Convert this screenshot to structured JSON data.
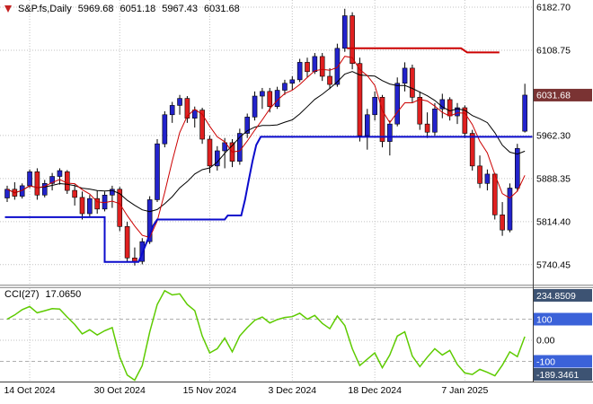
{
  "header": {
    "symbol": "S&P.fs,Daily",
    "open": "5969.68",
    "high": "6051.18",
    "low": "5967.43",
    "close": "6031.68"
  },
  "indicator": {
    "label": "CCI(27)",
    "value": "17.0650"
  },
  "colors": {
    "background": "#ffffff",
    "bull": "#2323cc",
    "bear": "#e02020",
    "wick": "#000000",
    "ma_fast": "#cc0000",
    "ma_slow": "#000000",
    "support_line": "#0b0bcc",
    "resistance_line": "#cc0000",
    "cci_line": "#5ecb00",
    "grid": "#c2c2c2",
    "level_line": "#b0b0b0",
    "axis_text": "#000000",
    "frame": "#404040",
    "splitter_fill": "#e8e8e8",
    "splitter_edge": "#9a9a9a",
    "price_tag_bg": "#7a3333",
    "level_tag_bg": "#3b62d9",
    "range_tag_bg": "#3d5373",
    "tag_text": "#ffffff"
  },
  "chart_data": {
    "type": "candlestick",
    "symbol": "S&P.fs",
    "timeframe": "Daily",
    "x_ticks": [
      {
        "label": "14 Oct 2024",
        "index": 3
      },
      {
        "label": "30 Oct 2024",
        "index": 15
      },
      {
        "label": "15 Nov 2024",
        "index": 27
      },
      {
        "label": "3 Dec 2024",
        "index": 38
      },
      {
        "label": "18 Dec 2024",
        "index": 49
      },
      {
        "label": "7 Jan 2025",
        "index": 61
      }
    ],
    "price_axis": {
      "gridlines": [
        {
          "label": "6182.70",
          "value": 6182.7
        },
        {
          "label": "6108.75",
          "value": 6108.75
        },
        {
          "label": "5962.30",
          "value": 5962.3
        },
        {
          "label": "5888.35",
          "value": 5888.35
        },
        {
          "label": "5814.40",
          "value": 5814.4
        },
        {
          "label": "5740.45",
          "value": 5740.45
        }
      ],
      "current": {
        "label": "6031.68",
        "value": 6031.68
      }
    },
    "candles": [
      [
        5855,
        5876,
        5848,
        5870
      ],
      [
        5870,
        5882,
        5852,
        5858
      ],
      [
        5858,
        5880,
        5854,
        5876
      ],
      [
        5876,
        5904,
        5872,
        5900
      ],
      [
        5900,
        5906,
        5852,
        5860
      ],
      [
        5860,
        5886,
        5856,
        5880
      ],
      [
        5880,
        5898,
        5868,
        5892
      ],
      [
        5892,
        5906,
        5878,
        5902
      ],
      [
        5900,
        5903,
        5862,
        5868
      ],
      [
        5868,
        5878,
        5842,
        5856
      ],
      [
        5856,
        5866,
        5818,
        5828
      ],
      [
        5828,
        5860,
        5822,
        5854
      ],
      [
        5854,
        5868,
        5828,
        5836
      ],
      [
        5836,
        5866,
        5832,
        5860
      ],
      [
        5860,
        5876,
        5838,
        5870
      ],
      [
        5870,
        5874,
        5798,
        5806
      ],
      [
        5806,
        5814,
        5744,
        5752
      ],
      [
        5752,
        5770,
        5739,
        5746
      ],
      [
        5746,
        5786,
        5741,
        5780
      ],
      [
        5780,
        5858,
        5776,
        5852
      ],
      [
        5852,
        5956,
        5848,
        5948
      ],
      [
        5948,
        6004,
        5942,
        5998
      ],
      [
        5998,
        6020,
        5984,
        6014
      ],
      [
        6014,
        6032,
        5998,
        6026
      ],
      [
        6026,
        6030,
        5984,
        5992
      ],
      [
        5992,
        6012,
        5976,
        6006
      ],
      [
        6006,
        6010,
        5948,
        5956
      ],
      [
        5956,
        5962,
        5898,
        5910
      ],
      [
        5910,
        5944,
        5902,
        5936
      ],
      [
        5936,
        5958,
        5906,
        5950
      ],
      [
        5950,
        5956,
        5908,
        5918
      ],
      [
        5918,
        5974,
        5912,
        5966
      ],
      [
        5966,
        6000,
        5958,
        5994
      ],
      [
        5994,
        6038,
        5988,
        6030
      ],
      [
        6030,
        6044,
        6008,
        6038
      ],
      [
        6038,
        6044,
        6002,
        6012
      ],
      [
        6012,
        6046,
        6008,
        6040
      ],
      [
        6040,
        6058,
        6032,
        6052
      ],
      [
        6052,
        6064,
        6040,
        6058
      ],
      [
        6058,
        6094,
        6054,
        6088
      ],
      [
        6088,
        6096,
        6062,
        6072
      ],
      [
        6072,
        6104,
        6068,
        6098
      ],
      [
        6098,
        6104,
        6056,
        6064
      ],
      [
        6064,
        6078,
        6042,
        6050
      ],
      [
        6050,
        6120,
        6046,
        6112
      ],
      [
        6112,
        6180,
        6106,
        6168
      ],
      [
        6168,
        6174,
        6076,
        6086
      ],
      [
        6086,
        6096,
        5952,
        5962
      ],
      [
        5962,
        6008,
        5938,
        5998
      ],
      [
        5998,
        6038,
        5988,
        6028
      ],
      [
        6028,
        6032,
        5942,
        5952
      ],
      [
        5952,
        5988,
        5928,
        5982
      ],
      [
        5982,
        6062,
        5978,
        6052
      ],
      [
        6052,
        6088,
        6038,
        6078
      ],
      [
        6078,
        6084,
        6018,
        6028
      ],
      [
        6028,
        6038,
        5972,
        5982
      ],
      [
        5982,
        6002,
        5958,
        5968
      ],
      [
        5968,
        6018,
        5962,
        6008
      ],
      [
        6008,
        6034,
        5992,
        6024
      ],
      [
        6024,
        6028,
        5988,
        5996
      ],
      [
        5996,
        6018,
        5982,
        6010
      ],
      [
        6010,
        6014,
        5958,
        5966
      ],
      [
        5966,
        5972,
        5902,
        5910
      ],
      [
        5910,
        5928,
        5872,
        5880
      ],
      [
        5880,
        5904,
        5868,
        5896
      ],
      [
        5896,
        5898,
        5818,
        5826
      ],
      [
        5826,
        5848,
        5790,
        5800
      ],
      [
        5800,
        5880,
        5796,
        5872
      ],
      [
        5872,
        5948,
        5866,
        5940
      ],
      [
        5969.68,
        6051.18,
        5967.43,
        6031.68
      ]
    ],
    "overlays": {
      "ma_fast_period": 5,
      "ma_slow_period": 13,
      "support_step_line": [
        [
          -0.3,
          5822
        ],
        [
          13,
          5822
        ],
        [
          13,
          5745
        ],
        [
          17.5,
          5745
        ],
        [
          18,
          5760
        ],
        [
          18.5,
          5776
        ],
        [
          19,
          5792
        ],
        [
          19.5,
          5808
        ],
        [
          20,
          5818
        ],
        [
          29,
          5818
        ],
        [
          29.4,
          5825
        ],
        [
          31.2,
          5825
        ],
        [
          31.7,
          5852
        ],
        [
          32.2,
          5886
        ],
        [
          32.7,
          5918
        ],
        [
          33.2,
          5946
        ],
        [
          33.8,
          5960
        ],
        [
          70,
          5960
        ]
      ],
      "resistance_line": [
        [
          45.3,
          6112
        ],
        [
          60.5,
          6112
        ],
        [
          61.3,
          6105
        ],
        [
          65.6,
          6105
        ]
      ]
    },
    "indicator_panel": {
      "type": "line",
      "name": "CCI(27)",
      "current_value": 17.065,
      "levels": [
        100,
        0,
        -100
      ],
      "axis": {
        "max_label": "234.8509",
        "max_value": 234.8509,
        "min_label": "-189.3461",
        "min_value": -189.3461,
        "upper_level_label": "100",
        "zero_label": "0.00",
        "lower_level_label": "-100"
      },
      "values": [
        100,
        120,
        145,
        160,
        130,
        140,
        150,
        148,
        110,
        75,
        30,
        50,
        25,
        45,
        60,
        -80,
        -165,
        -189.35,
        -120,
        40,
        170,
        234.85,
        215,
        220,
        170,
        140,
        20,
        -60,
        -40,
        10,
        -55,
        20,
        60,
        95,
        110,
        82,
        98,
        108,
        112,
        128,
        100,
        118,
        80,
        55,
        115,
        70,
        -40,
        -120,
        -90,
        -60,
        -130,
        -70,
        20,
        40,
        -75,
        -125,
        -80,
        -40,
        -70,
        -48,
        -115,
        -155,
        -162,
        -138,
        -152,
        -168,
        -118,
        -55,
        -78,
        17.07
      ]
    }
  }
}
